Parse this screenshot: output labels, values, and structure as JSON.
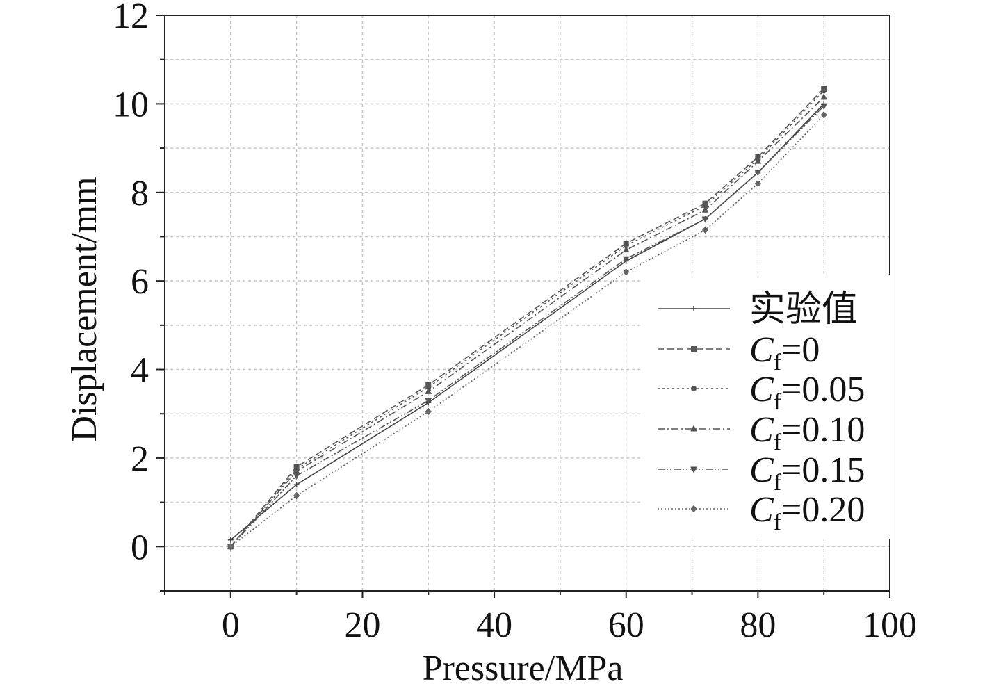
{
  "chart_data": {
    "type": "line",
    "xlabel": "Pressure/MPa",
    "ylabel": "Displacement/mm",
    "xlim": [
      -10,
      100
    ],
    "ylim": [
      -1,
      12
    ],
    "xticks": [
      "0",
      "20",
      "40",
      "60",
      "80",
      "100"
    ],
    "xtick_values": [
      0,
      20,
      40,
      60,
      80,
      100
    ],
    "yticks": [
      "0",
      "2",
      "4",
      "6",
      "8",
      "10",
      "12"
    ],
    "ytick_values": [
      0,
      2,
      4,
      6,
      8,
      10,
      12
    ],
    "grid": true,
    "legend_position": "right",
    "x": [
      0,
      10,
      30,
      60,
      72,
      80,
      90
    ],
    "series": [
      {
        "name": "实验值",
        "label_main": "实验值",
        "label_sub": "",
        "label_rest": "",
        "values": [
          0.15,
          1.4,
          3.25,
          6.45,
          7.4,
          8.45,
          10.0
        ],
        "color": "#444444",
        "dash": "",
        "marker": "plus"
      },
      {
        "name": "Cf=0",
        "label_main": "C",
        "label_sub": "f",
        "label_rest": "=0",
        "values": [
          0.0,
          1.8,
          3.65,
          6.85,
          7.75,
          8.8,
          10.35
        ],
        "color": "#555555",
        "dash": "9,5",
        "marker": "square"
      },
      {
        "name": "Cf=0.05",
        "label_main": "C",
        "label_sub": "f",
        "label_rest": "=0.05",
        "values": [
          0.0,
          1.75,
          3.6,
          6.8,
          7.7,
          8.75,
          10.3
        ],
        "color": "#555555",
        "dash": "3,4",
        "marker": "circle"
      },
      {
        "name": "Cf=0.10",
        "label_main": "C",
        "label_sub": "f",
        "label_rest": "=0.10",
        "values": [
          0.0,
          1.7,
          3.5,
          6.7,
          7.6,
          8.7,
          10.15
        ],
        "color": "#555555",
        "dash": "10,4,2,4",
        "marker": "triangle"
      },
      {
        "name": "Cf=0.15",
        "label_main": "C",
        "label_sub": "f",
        "label_rest": "=0.15",
        "values": [
          0.0,
          1.6,
          3.3,
          6.5,
          7.4,
          8.45,
          9.95
        ],
        "color": "#555555",
        "dash": "10,3,2,3,2,3",
        "marker": "triangle-down"
      },
      {
        "name": "Cf=0.20",
        "label_main": "C",
        "label_sub": "f",
        "label_rest": "=0.20",
        "values": [
          0.0,
          1.15,
          3.05,
          6.2,
          7.15,
          8.2,
          9.75
        ],
        "color": "#666666",
        "dash": "2,3",
        "marker": "diamond"
      }
    ]
  }
}
